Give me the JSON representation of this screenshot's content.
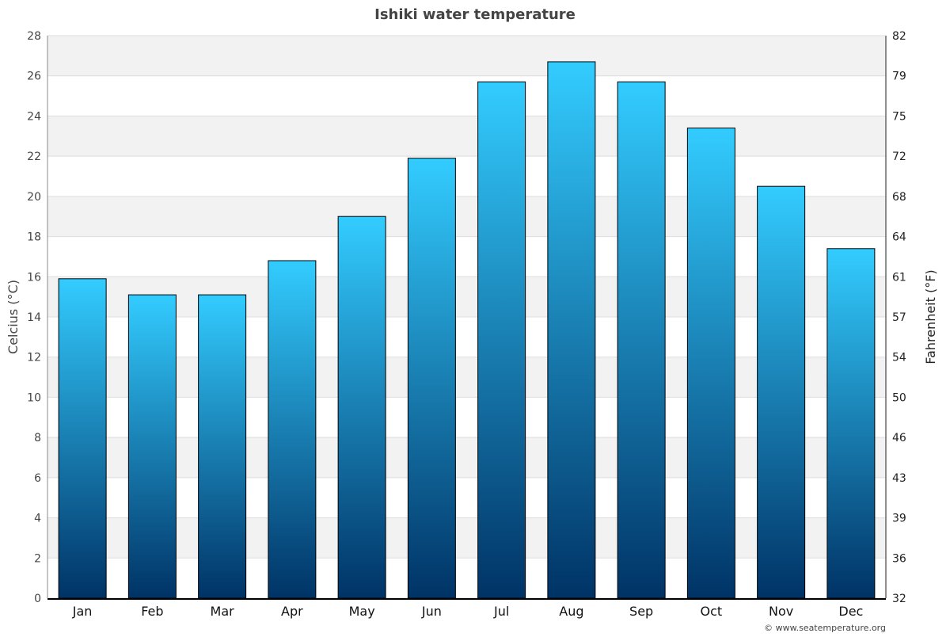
{
  "chart_data": {
    "type": "bar",
    "title": "Ishiki water temperature",
    "categories": [
      "Jan",
      "Feb",
      "Mar",
      "Apr",
      "May",
      "Jun",
      "Jul",
      "Aug",
      "Sep",
      "Oct",
      "Nov",
      "Dec"
    ],
    "series": [
      {
        "values": [
          15.9,
          15.1,
          15.1,
          16.8,
          19.0,
          21.9,
          25.7,
          26.7,
          25.7,
          23.4,
          20.5,
          17.4
        ]
      }
    ],
    "ylabel": "Celcius (°C)",
    "ylabel_right": "Fahrenheit (°F)",
    "ylim": [
      0,
      28
    ],
    "yticks": [
      0,
      2,
      4,
      6,
      8,
      10,
      12,
      14,
      16,
      18,
      20,
      22,
      24,
      26,
      28
    ],
    "yticks_right": [
      "32",
      "36",
      "39",
      "43",
      "46",
      "50",
      "54",
      "57",
      "61",
      "64",
      "68",
      "72",
      "75",
      "79",
      "82"
    ],
    "grid": true,
    "alternating_bands": true,
    "colors": {
      "bar_top": "#33ccff",
      "bar_bottom": "#003366",
      "band": "#f2f2f2",
      "title": "#444444"
    }
  },
  "credit": "© www.seatemperature.org"
}
